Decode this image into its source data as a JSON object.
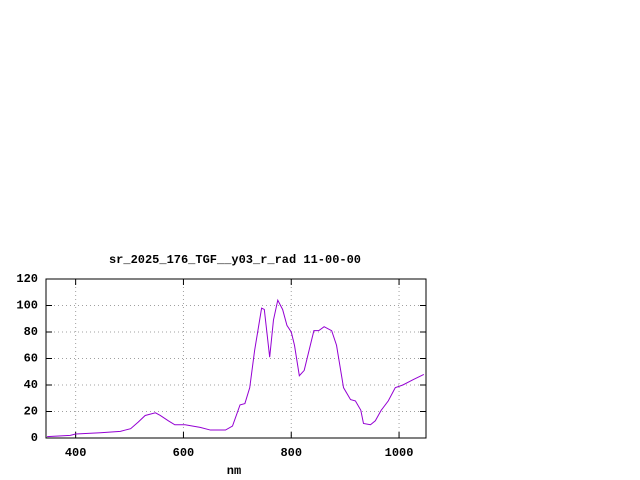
{
  "chart_data": {
    "type": "line",
    "title": "sr_2025_176_TGF__y03_r_rad 11-00-00",
    "x_label": "nm",
    "x": [
      347,
      390,
      400,
      446,
      483,
      492,
      502,
      516,
      529,
      548,
      557,
      572,
      584,
      603,
      631,
      650,
      678,
      691,
      705,
      714,
      723,
      732,
      745,
      750,
      760,
      767,
      775,
      784,
      792,
      800,
      806,
      815,
      824,
      833,
      842,
      851,
      861,
      875,
      884,
      897,
      910,
      919,
      929,
      934,
      947,
      956,
      967,
      980,
      993,
      1007,
      1026,
      1046
    ],
    "series": [
      {
        "name": "sr_2025_176_TGF__y03_r_rad",
        "color": "#9400d3",
        "values": [
          1,
          2,
          3,
          4,
          5,
          6,
          7,
          12,
          17,
          19,
          17,
          13,
          10,
          10,
          8,
          6,
          6,
          9,
          25,
          26,
          38,
          66,
          98,
          97,
          61,
          89,
          104,
          97,
          85,
          80,
          70,
          47,
          51,
          66,
          81,
          81,
          84,
          81,
          70,
          38,
          29,
          28,
          21,
          11,
          10,
          13,
          21,
          28,
          38,
          40,
          44,
          48
        ]
      }
    ],
    "xlim": [
      345,
      1050
    ],
    "ylim": [
      0,
      120
    ],
    "xticks": [
      400,
      600,
      800,
      1000
    ],
    "yticks": [
      0,
      20,
      40,
      60,
      80,
      100,
      120
    ],
    "grid": true
  }
}
